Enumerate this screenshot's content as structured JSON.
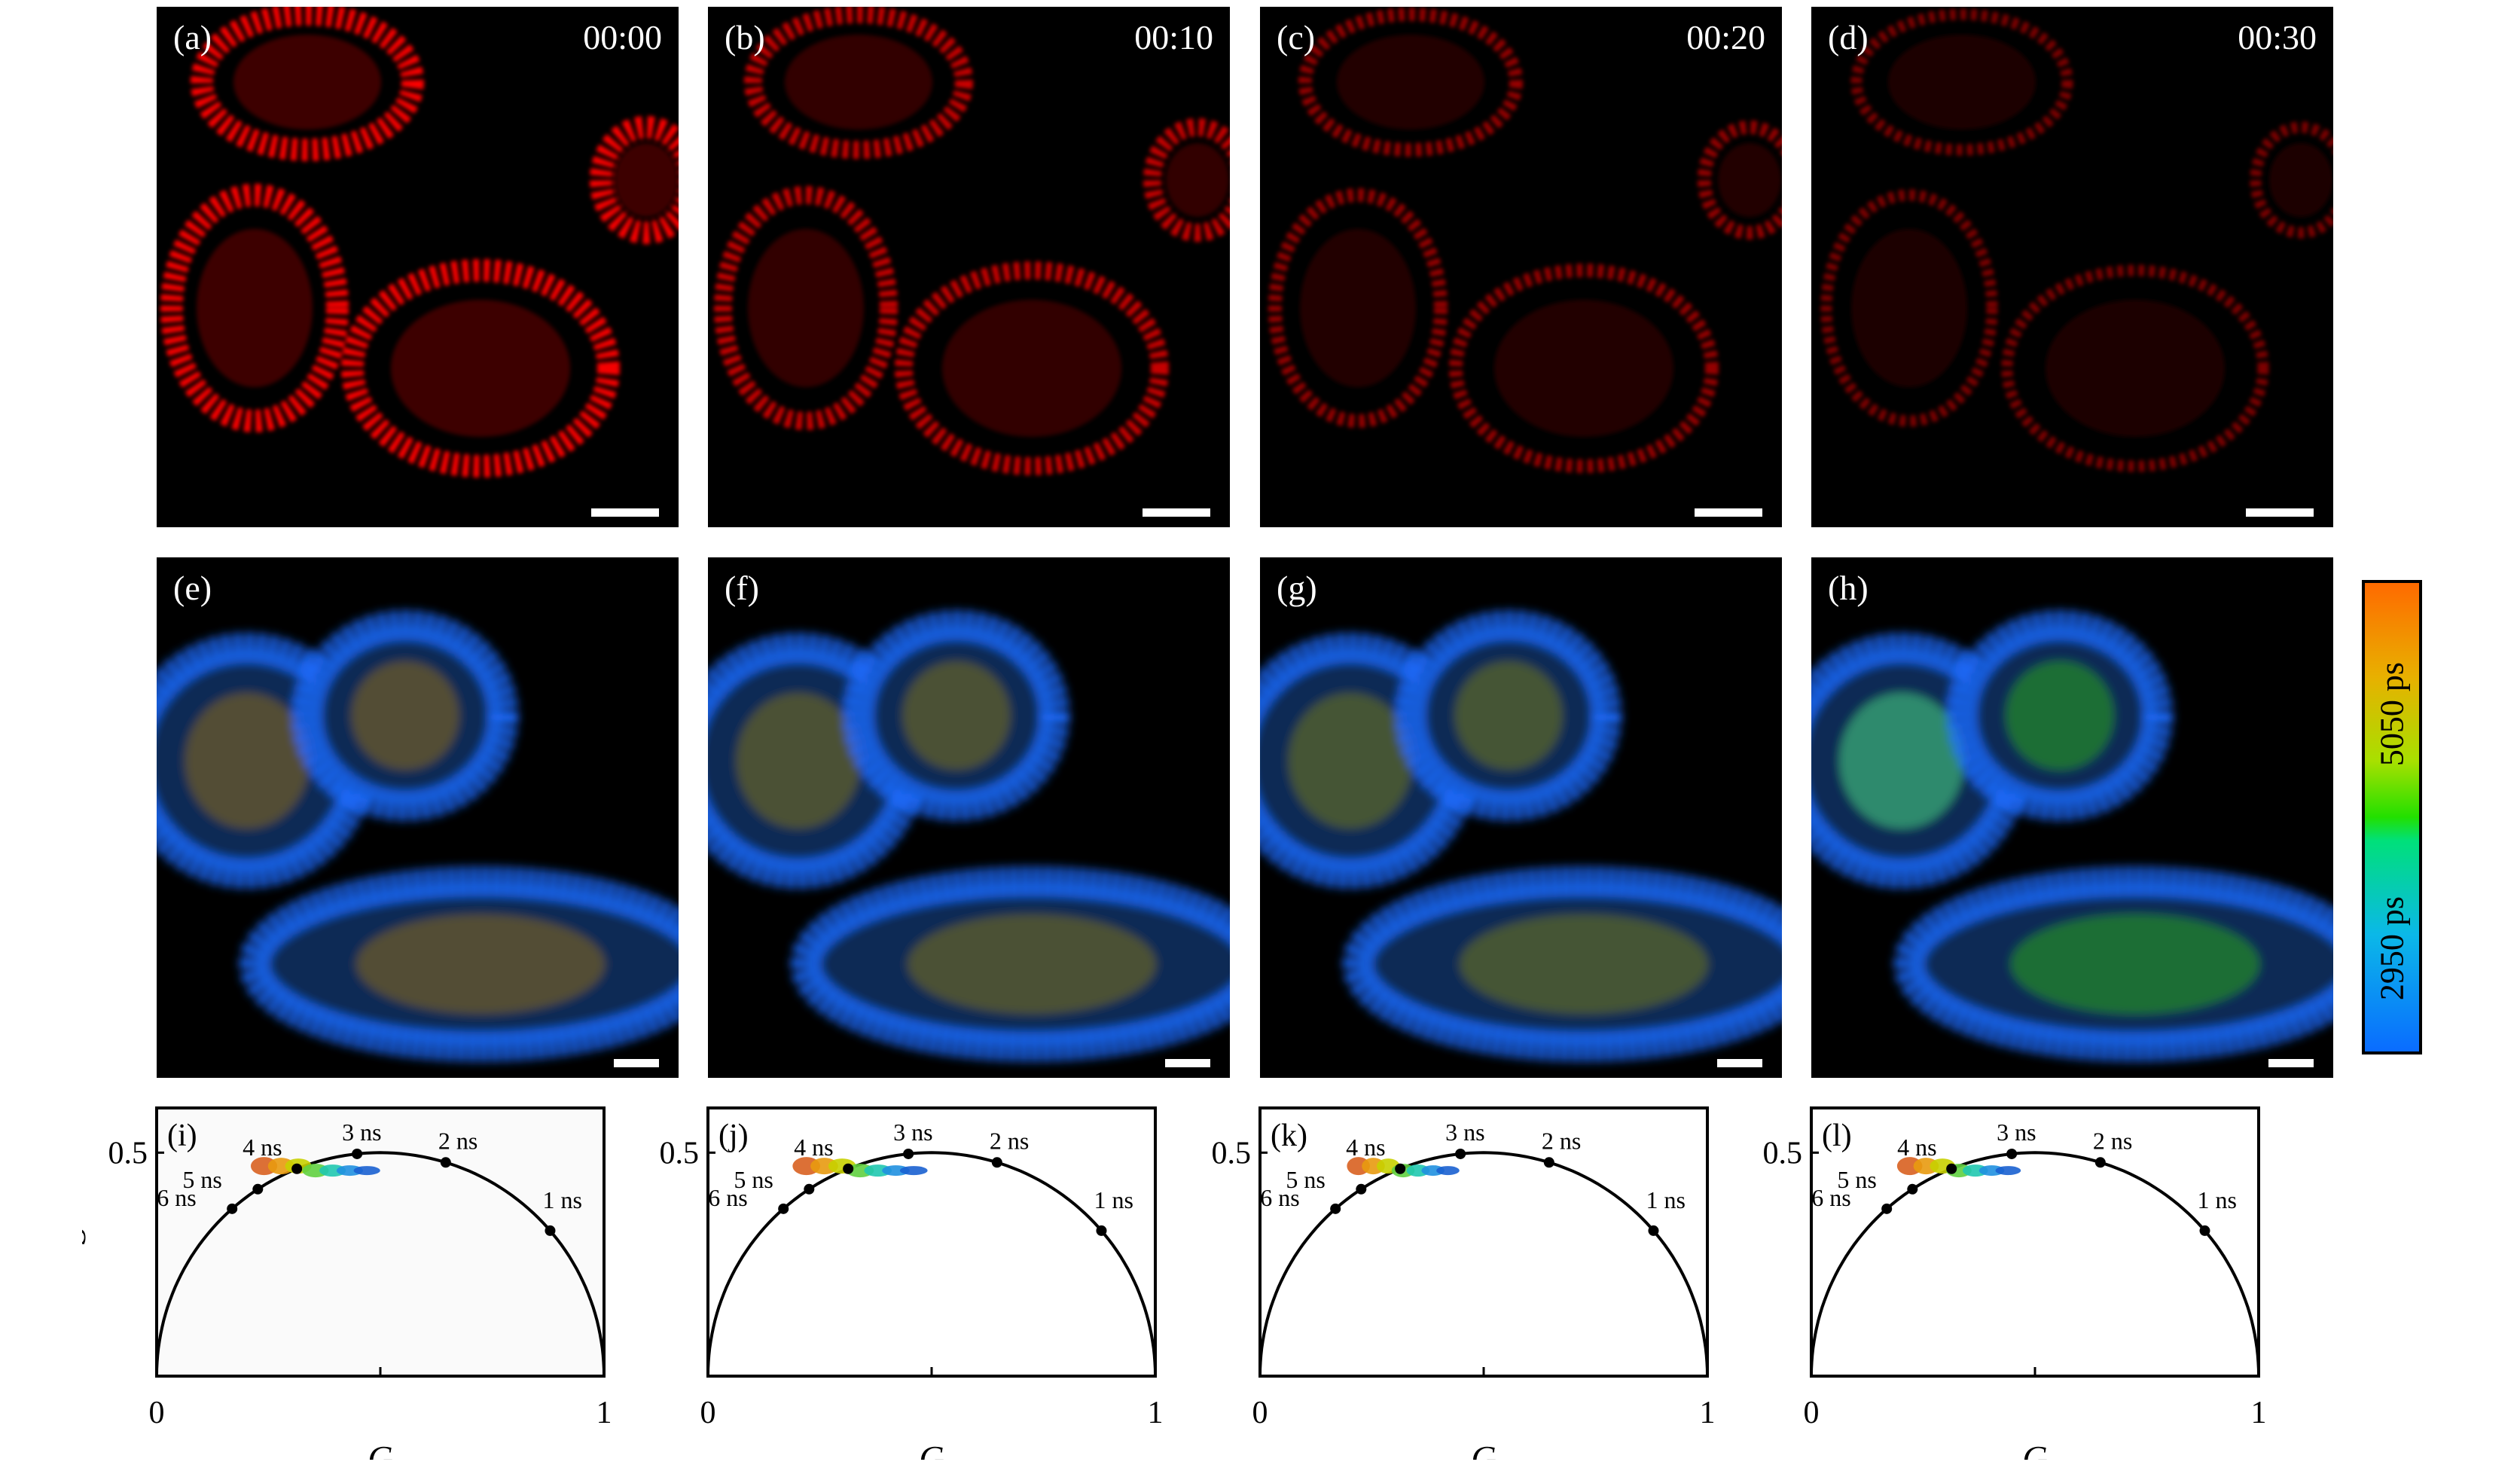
{
  "image_rows": [
    {
      "type": "intensity",
      "panels": [
        {
          "label": "(a)",
          "time": "00:00",
          "intensity": 1.0
        },
        {
          "label": "(b)",
          "time": "00:10",
          "intensity": 0.8
        },
        {
          "label": "(c)",
          "time": "00:20",
          "intensity": 0.6
        },
        {
          "label": "(d)",
          "time": "00:30",
          "intensity": 0.5
        }
      ]
    },
    {
      "type": "lifetime",
      "panels": [
        {
          "label": "(e)",
          "nucleus_green": 0.2
        },
        {
          "label": "(f)",
          "nucleus_green": 0.3
        },
        {
          "label": "(g)",
          "nucleus_green": 0.4
        },
        {
          "label": "(h)",
          "nucleus_green": 1.0
        }
      ]
    }
  ],
  "colorbar": {
    "high_label": "5050 ps",
    "low_label": "2950 ps",
    "high_color": "#ff6a00",
    "low_color": "#0a6cff"
  },
  "chart_data": [
    {
      "type": "scatter",
      "title": "(i)",
      "xlabel": "G",
      "ylabel": "S",
      "xlim": [
        0,
        1
      ],
      "ylim": [
        0,
        0.6
      ],
      "xticks": [
        "0",
        "1"
      ],
      "yticks": [
        "0.5"
      ],
      "lifetime_markers": [
        "1 ns",
        "2 ns",
        "3 ns",
        "4 ns",
        "5 ns",
        "6 ns"
      ],
      "cluster": {
        "g_range": [
          0.24,
          0.47
        ],
        "s_center": 0.47
      }
    },
    {
      "type": "scatter",
      "title": "(j)",
      "xlabel": "G",
      "ylabel": "",
      "xlim": [
        0,
        1
      ],
      "ylim": [
        0,
        0.6
      ],
      "xticks": [
        "0",
        "1"
      ],
      "yticks": [
        "0.5"
      ],
      "lifetime_markers": [
        "1 ns",
        "2 ns",
        "3 ns",
        "4 ns",
        "5 ns",
        "6 ns"
      ],
      "cluster": {
        "g_range": [
          0.22,
          0.46
        ],
        "s_center": 0.47
      }
    },
    {
      "type": "scatter",
      "title": "(k)",
      "xlabel": "G",
      "ylabel": "",
      "xlim": [
        0,
        1
      ],
      "ylim": [
        0,
        0.6
      ],
      "xticks": [
        "0",
        "1"
      ],
      "yticks": [
        "0.5"
      ],
      "lifetime_markers": [
        "1 ns",
        "2 ns",
        "3 ns",
        "4 ns",
        "5 ns",
        "6 ns"
      ],
      "cluster": {
        "g_range": [
          0.22,
          0.42
        ],
        "s_center": 0.47
      }
    },
    {
      "type": "scatter",
      "title": "(l)",
      "xlabel": "G",
      "ylabel": "",
      "xlim": [
        0,
        1
      ],
      "ylim": [
        0,
        0.6
      ],
      "xticks": [
        "0",
        "1"
      ],
      "yticks": [
        "0.5"
      ],
      "lifetime_markers": [
        "1 ns",
        "2 ns",
        "3 ns",
        "4 ns",
        "5 ns",
        "6 ns"
      ],
      "cluster": {
        "g_range": [
          0.22,
          0.44
        ],
        "s_center": 0.47
      }
    }
  ]
}
